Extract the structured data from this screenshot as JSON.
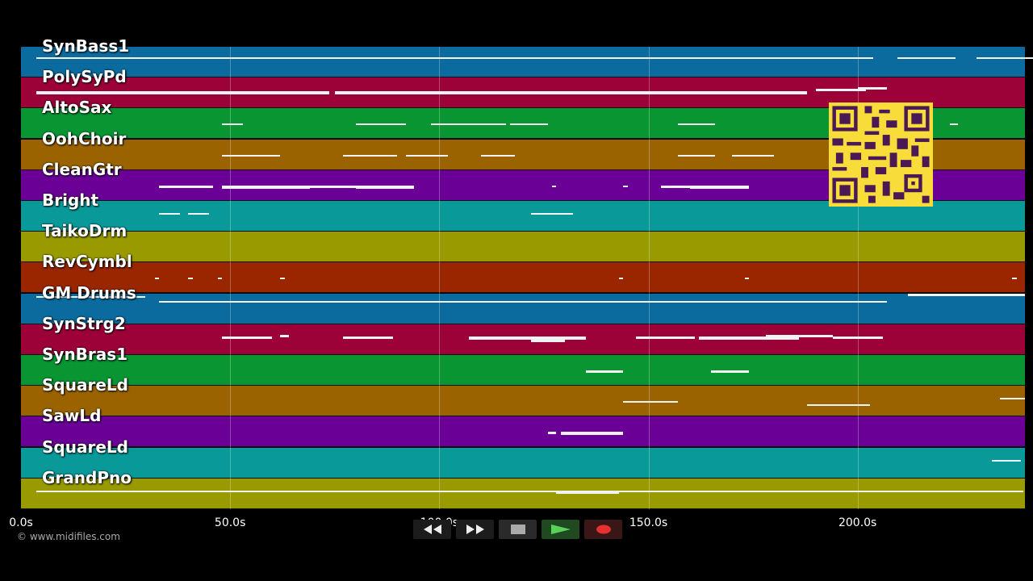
{
  "tracks": [
    {
      "name": "SynBass1",
      "color": "#0b6b9e"
    },
    {
      "name": "PolySyPd",
      "color": "#9c0238"
    },
    {
      "name": "AltoSax",
      "color": "#0a9533"
    },
    {
      "name": "OohChoir",
      "color": "#9a6300"
    },
    {
      "name": "CleanGtr",
      "color": "#6a0096"
    },
    {
      "name": "Bright",
      "color": "#0a9999"
    },
    {
      "name": "TaikoDrm",
      "color": "#999a00"
    },
    {
      "name": "RevCymbl",
      "color": "#9a2600"
    },
    {
      "name": "GM Drums",
      "color": "#0b6b9e"
    },
    {
      "name": "SynStrg2",
      "color": "#9c0238"
    },
    {
      "name": "SynBras1",
      "color": "#0a9533"
    },
    {
      "name": "SquareLd",
      "color": "#9a6300"
    },
    {
      "name": "SawLd",
      "color": "#6a0096"
    },
    {
      "name": "SquareLd",
      "color": "#0a9999"
    },
    {
      "name": "GrandPno",
      "color": "#999a00"
    }
  ],
  "timeline": {
    "ticks": [
      "0.0s",
      "50.0s",
      "100.0s",
      "150.0s",
      "200.0s"
    ],
    "tick_seconds": [
      0,
      50,
      100,
      150,
      200
    ],
    "total_seconds": 240
  },
  "copyright": "© www.midifiles.com",
  "transport": {
    "rewind_icon": "rewind-icon",
    "forward_icon": "fast-forward-icon",
    "stop_icon": "stop-icon",
    "play_icon": "play-icon",
    "record_icon": "record-icon"
  },
  "qr_code_icon": "qr-code-icon",
  "notes": [
    [
      [
        3.7,
        0.33,
        1
      ],
      [
        209.5,
        0.33,
        1
      ],
      [
        228.5,
        0.33,
        1
      ]
    ],
    [
      [
        3.7,
        0.45,
        3
      ],
      [
        75,
        0.45,
        3
      ],
      [
        190,
        0.35,
        2
      ],
      [
        200,
        0.3,
        2
      ]
    ],
    [
      [
        48,
        0.5,
        1
      ],
      [
        80,
        0.5,
        1
      ],
      [
        98,
        0.5,
        1
      ],
      [
        117,
        0.5,
        1
      ],
      [
        157,
        0.5,
        1
      ],
      [
        208,
        0.5,
        1
      ],
      [
        222,
        0.5,
        1
      ]
    ],
    [
      [
        48,
        0.5,
        1
      ],
      [
        77,
        0.5,
        1
      ],
      [
        92,
        0.5,
        1
      ],
      [
        110,
        0.5,
        1
      ],
      [
        157,
        0.5,
        1
      ],
      [
        170,
        0.5,
        1
      ]
    ],
    [
      [
        33,
        0.5,
        2
      ],
      [
        48,
        0.5,
        3
      ],
      [
        67,
        0.5,
        2
      ],
      [
        80,
        0.5,
        3
      ],
      [
        127,
        0.5,
        1
      ],
      [
        144,
        0.5,
        1
      ],
      [
        153,
        0.5,
        2
      ],
      [
        160,
        0.5,
        3
      ]
    ],
    [
      [
        33,
        0.38,
        1
      ],
      [
        40,
        0.38,
        1
      ],
      [
        122,
        0.38,
        1
      ]
    ],
    [],
    [
      [
        32,
        0.5,
        1
      ],
      [
        40,
        0.5,
        1
      ],
      [
        47,
        0.5,
        1
      ],
      [
        62,
        0.5,
        1
      ],
      [
        143,
        0.5,
        1
      ],
      [
        173,
        0.5,
        1
      ],
      [
        237,
        0.5,
        1
      ]
    ],
    [
      [
        3.7,
        0.1,
        1
      ],
      [
        33,
        0.25,
        1
      ],
      [
        63,
        0.25,
        1
      ],
      [
        96,
        0.25,
        1
      ],
      [
        128,
        0.25,
        1
      ],
      [
        161,
        0.25,
        1
      ],
      [
        190,
        0.25,
        1
      ],
      [
        212,
        0.0,
        2
      ]
    ],
    [
      [
        48,
        0.4,
        2
      ],
      [
        62,
        0.35,
        2
      ],
      [
        77,
        0.4,
        2
      ],
      [
        107,
        0.4,
        3
      ],
      [
        122,
        0.5,
        2
      ],
      [
        147,
        0.4,
        2
      ],
      [
        162,
        0.4,
        3
      ],
      [
        178,
        0.35,
        2
      ],
      [
        194,
        0.4,
        2
      ]
    ],
    [
      [
        135,
        0.5,
        2
      ],
      [
        165,
        0.5,
        2
      ]
    ],
    [
      [
        144,
        0.5,
        1
      ],
      [
        188,
        0.6,
        1
      ],
      [
        234,
        0.4,
        1
      ]
    ],
    [
      [
        126,
        0.5,
        2
      ],
      [
        129,
        0.5,
        3
      ]
    ],
    [
      [
        232,
        0.4,
        1
      ]
    ],
    [
      [
        3.7,
        0.4,
        1
      ],
      [
        128,
        0.4,
        3
      ],
      [
        213,
        0.4,
        1
      ]
    ]
  ],
  "note_lengths": [
    [
      [
        3.7,
        200
      ],
      [
        209.5,
        14
      ],
      [
        228.5,
        14
      ]
    ],
    [
      [
        3.7,
        70
      ],
      [
        75,
        113
      ],
      [
        190,
        12
      ],
      [
        200,
        7
      ]
    ],
    [
      [
        48,
        5
      ],
      [
        80,
        12
      ],
      [
        98,
        18
      ],
      [
        117,
        9
      ],
      [
        157,
        9
      ],
      [
        208,
        7
      ],
      [
        222,
        2
      ]
    ],
    [
      [
        48,
        14
      ],
      [
        77,
        13
      ],
      [
        92,
        10
      ],
      [
        110,
        8
      ],
      [
        157,
        9
      ],
      [
        170,
        10
      ]
    ],
    [
      [
        33,
        13
      ],
      [
        48,
        21
      ],
      [
        67,
        14
      ],
      [
        80,
        14
      ],
      [
        127,
        1
      ],
      [
        144,
        1
      ],
      [
        153,
        14
      ],
      [
        160,
        14
      ]
    ],
    [
      [
        33,
        5
      ],
      [
        40,
        5
      ],
      [
        122,
        10
      ]
    ],
    [],
    [
      [
        32,
        1
      ],
      [
        40,
        1
      ],
      [
        47,
        1
      ],
      [
        62,
        1
      ],
      [
        143,
        1
      ],
      [
        173,
        1
      ],
      [
        237,
        1
      ]
    ],
    [
      [
        3.7,
        26
      ],
      [
        33,
        174
      ],
      [
        63,
        30
      ],
      [
        96,
        30
      ],
      [
        128,
        30
      ],
      [
        161,
        20
      ],
      [
        190,
        10
      ],
      [
        212,
        28
      ]
    ],
    [
      [
        48,
        12
      ],
      [
        62,
        2
      ],
      [
        77,
        12
      ],
      [
        107,
        28
      ],
      [
        122,
        8
      ],
      [
        147,
        14
      ],
      [
        162,
        24
      ],
      [
        178,
        16
      ],
      [
        194,
        12
      ]
    ],
    [
      [
        135,
        9
      ],
      [
        165,
        9
      ]
    ],
    [
      [
        144,
        13
      ],
      [
        188,
        15
      ],
      [
        234,
        6
      ]
    ],
    [
      [
        126,
        2
      ],
      [
        129,
        15
      ]
    ],
    [
      [
        232,
        7
      ]
    ],
    [
      [
        3.7,
        236
      ],
      [
        128,
        15
      ],
      [
        213,
        26
      ]
    ]
  ]
}
